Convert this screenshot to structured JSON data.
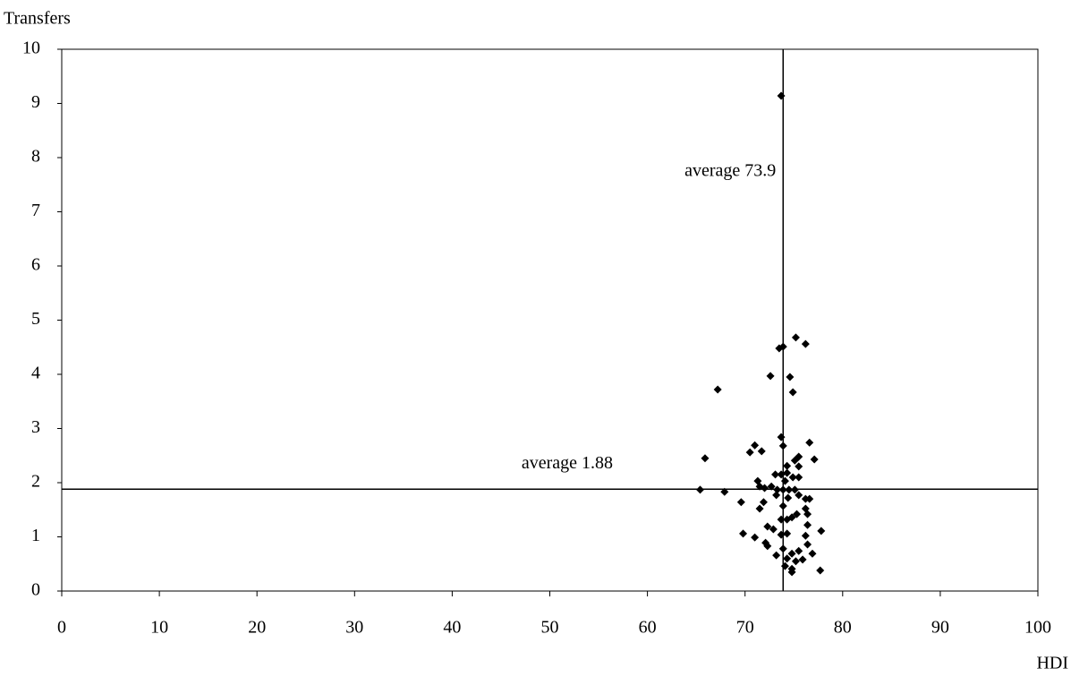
{
  "chart_data": {
    "type": "scatter",
    "y_label": "Transfers",
    "x_label": "HDI",
    "color": "#000000",
    "xlim": [
      0,
      100
    ],
    "xticks": [
      0,
      10,
      20,
      30,
      40,
      50,
      60,
      70,
      80,
      90,
      100
    ],
    "ylim": [
      0,
      10
    ],
    "yticks": [
      0,
      1,
      2,
      3,
      4,
      5,
      6,
      7,
      8,
      9,
      10
    ],
    "reference_lines": [
      {
        "axis": "x",
        "value": 73.9,
        "label": "average 73.9"
      },
      {
        "axis": "y",
        "value": 1.88,
        "label": "average 1.88"
      }
    ],
    "x": [
      73.7,
      75.2,
      76.2,
      73.5,
      73.9,
      72.6,
      74.6,
      74.9,
      67.2,
      73.7,
      76.6,
      73.9,
      71.0,
      71.7,
      70.5,
      75.5,
      75.1,
      77.1,
      65.9,
      74.3,
      75.5,
      73.1,
      73.7,
      74.3,
      74.9,
      75.5,
      71.3,
      74.1,
      71.5,
      72.0,
      72.7,
      73.3,
      73.9,
      74.5,
      75.1,
      65.4,
      67.9,
      73.2,
      74.4,
      75.5,
      76.2,
      76.6,
      71.9,
      69.6,
      73.9,
      71.5,
      76.2,
      76.4,
      75.3,
      74.8,
      73.7,
      74.3,
      72.3,
      72.9,
      76.4,
      77.8,
      69.8,
      74.3,
      76.2,
      73.7,
      71.0,
      72.1,
      72.3,
      76.4,
      73.9,
      75.5,
      74.8,
      73.2,
      76.9,
      74.3,
      75.2,
      75.9,
      74.1,
      74.8,
      77.7,
      74.8
    ],
    "y": [
      9.14,
      4.68,
      4.56,
      4.48,
      4.51,
      3.97,
      3.95,
      3.67,
      3.72,
      2.84,
      2.74,
      2.68,
      2.69,
      2.58,
      2.56,
      2.48,
      2.41,
      2.43,
      2.45,
      2.31,
      2.3,
      2.15,
      2.15,
      2.18,
      2.1,
      2.1,
      2.03,
      2.03,
      1.93,
      1.9,
      1.93,
      1.87,
      1.87,
      1.87,
      1.87,
      1.87,
      1.83,
      1.77,
      1.72,
      1.77,
      1.7,
      1.7,
      1.64,
      1.64,
      1.57,
      1.52,
      1.52,
      1.42,
      1.42,
      1.36,
      1.32,
      1.32,
      1.19,
      1.14,
      1.22,
      1.11,
      1.06,
      1.06,
      1.02,
      1.04,
      0.99,
      0.89,
      0.83,
      0.86,
      0.78,
      0.74,
      0.69,
      0.66,
      0.69,
      0.6,
      0.55,
      0.58,
      0.46,
      0.41,
      0.38,
      0.35
    ]
  }
}
